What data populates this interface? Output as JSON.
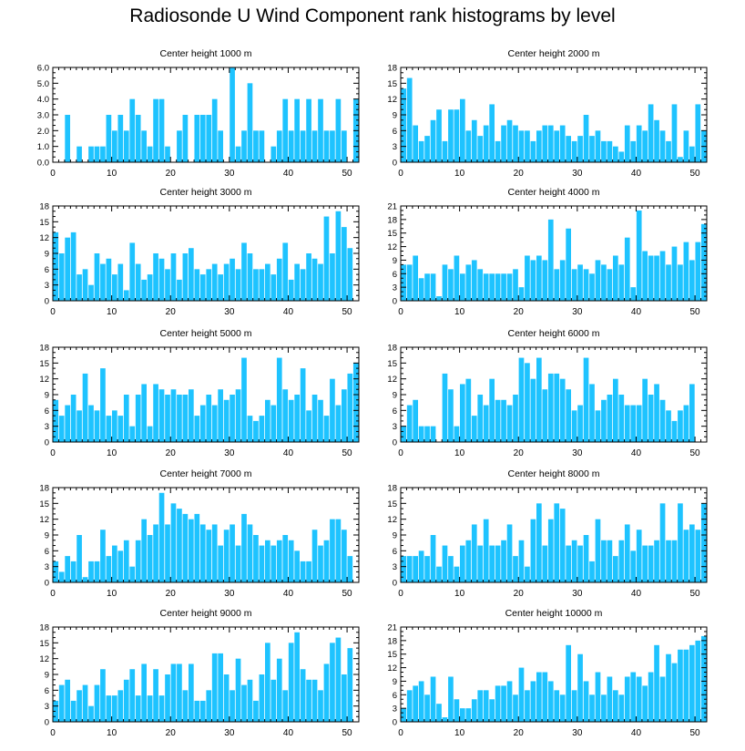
{
  "title": "Radiosonde U Wind Component rank histograms by level",
  "colors": {
    "bar": "#1ec3ff",
    "axis": "#000000",
    "background": "#ffffff"
  },
  "chart_data": [
    {
      "type": "bar",
      "title": "Center height 1000 m",
      "xlim": [
        0,
        52
      ],
      "ylim": [
        0,
        6
      ],
      "xticks": [
        0,
        10,
        20,
        30,
        40,
        50
      ],
      "yticks": [
        0,
        1,
        2,
        3,
        4,
        5,
        6
      ],
      "ytick_labels": [
        "0.0",
        "1.0",
        "2.0",
        "3.0",
        "4.0",
        "5.0",
        "6.0"
      ],
      "values": [
        0,
        0,
        3,
        0,
        1,
        0,
        1,
        1,
        1,
        3,
        2,
        3,
        2,
        4,
        3,
        2,
        1,
        4,
        4,
        1,
        0,
        2,
        3,
        0,
        3,
        3,
        3,
        4,
        2,
        0,
        6,
        1,
        2,
        5,
        2,
        2,
        0,
        1,
        2,
        4,
        2,
        4,
        2,
        4,
        2,
        4,
        2,
        2,
        4,
        2,
        0,
        4
      ]
    },
    {
      "type": "bar",
      "title": "Center height 2000 m",
      "xlim": [
        0,
        52
      ],
      "ylim": [
        0,
        18
      ],
      "xticks": [
        0,
        10,
        20,
        30,
        40,
        50
      ],
      "yticks": [
        0,
        3,
        6,
        9,
        12,
        15,
        18
      ],
      "ytick_labels": [
        "0",
        "3",
        "6",
        "9",
        "12",
        "15",
        "18"
      ],
      "values": [
        14,
        16,
        7,
        4,
        5,
        8,
        10,
        4,
        10,
        10,
        12,
        6,
        8,
        5,
        7,
        11,
        4,
        7,
        8,
        7,
        6,
        6,
        4,
        6,
        7,
        7,
        6,
        7,
        5,
        4,
        5,
        9,
        5,
        6,
        4,
        4,
        3,
        2,
        7,
        4,
        7,
        6,
        11,
        8,
        6,
        4,
        11,
        1,
        6,
        3,
        11,
        6
      ]
    },
    {
      "type": "bar",
      "title": "Center height 3000 m",
      "xlim": [
        0,
        52
      ],
      "ylim": [
        0,
        18
      ],
      "xticks": [
        0,
        10,
        20,
        30,
        40,
        50
      ],
      "yticks": [
        0,
        3,
        6,
        9,
        12,
        15,
        18
      ],
      "ytick_labels": [
        "0",
        "3",
        "6",
        "9",
        "12",
        "15",
        "18"
      ],
      "values": [
        13,
        9,
        12,
        13,
        5,
        6,
        3,
        9,
        7,
        8,
        5,
        7,
        2,
        11,
        7,
        4,
        5,
        9,
        8,
        6,
        9,
        4,
        9,
        10,
        6,
        5,
        6,
        7,
        5,
        7,
        8,
        6,
        11,
        9,
        6,
        6,
        7,
        5,
        8,
        11,
        4,
        7,
        6,
        9,
        8,
        7,
        16,
        9,
        17,
        14,
        10,
        0
      ]
    },
    {
      "type": "bar",
      "title": "Center height 4000 m",
      "xlim": [
        0,
        52
      ],
      "ylim": [
        0,
        21
      ],
      "xticks": [
        0,
        10,
        20,
        30,
        40,
        50
      ],
      "yticks": [
        0,
        3,
        6,
        9,
        12,
        15,
        18,
        21
      ],
      "ytick_labels": [
        "0",
        "3",
        "6",
        "9",
        "12",
        "15",
        "18",
        "21"
      ],
      "values": [
        8,
        8,
        10,
        5,
        6,
        6,
        1,
        8,
        7,
        10,
        6,
        8,
        9,
        7,
        6,
        6,
        6,
        6,
        6,
        7,
        3,
        10,
        9,
        10,
        9,
        18,
        7,
        9,
        16,
        7,
        8,
        7,
        6,
        9,
        8,
        7,
        10,
        8,
        14,
        3,
        20,
        11,
        10,
        10,
        11,
        8,
        12,
        8,
        13,
        9,
        13,
        17
      ]
    },
    {
      "type": "bar",
      "title": "Center height 5000 m",
      "xlim": [
        0,
        52
      ],
      "ylim": [
        0,
        18
      ],
      "xticks": [
        0,
        10,
        20,
        30,
        40,
        50
      ],
      "yticks": [
        0,
        3,
        6,
        9,
        12,
        15,
        18
      ],
      "ytick_labels": [
        "0",
        "3",
        "6",
        "9",
        "12",
        "15",
        "18"
      ],
      "values": [
        8,
        5,
        7,
        9,
        6,
        13,
        7,
        6,
        14,
        5,
        6,
        5,
        9,
        3,
        9,
        11,
        3,
        11,
        10,
        9,
        10,
        9,
        9,
        10,
        5,
        7,
        9,
        7,
        10,
        8,
        9,
        10,
        16,
        5,
        4,
        5,
        8,
        7,
        16,
        10,
        8,
        9,
        14,
        6,
        9,
        8,
        5,
        12,
        7,
        10,
        13,
        15
      ]
    },
    {
      "type": "bar",
      "title": "Center height 6000 m",
      "xlim": [
        0,
        52
      ],
      "ylim": [
        0,
        18
      ],
      "xticks": [
        0,
        10,
        20,
        30,
        40,
        50
      ],
      "yticks": [
        0,
        3,
        6,
        9,
        12,
        15,
        18
      ],
      "ytick_labels": [
        "0",
        "3",
        "6",
        "9",
        "12",
        "15",
        "18"
      ],
      "values": [
        3,
        7,
        8,
        3,
        3,
        3,
        0,
        13,
        10,
        3,
        11,
        12,
        5,
        9,
        7,
        12,
        8,
        8,
        7,
        9,
        16,
        15,
        12,
        16,
        10,
        13,
        13,
        12,
        10,
        6,
        7,
        16,
        11,
        6,
        8,
        9,
        12,
        9,
        7,
        7,
        7,
        12,
        9,
        11,
        8,
        6,
        4,
        6,
        7,
        11,
        0,
        0
      ]
    },
    {
      "type": "bar",
      "title": "Center height 7000 m",
      "xlim": [
        0,
        52
      ],
      "ylim": [
        0,
        18
      ],
      "xticks": [
        0,
        10,
        20,
        30,
        40,
        50
      ],
      "yticks": [
        0,
        3,
        6,
        9,
        12,
        15,
        18
      ],
      "ytick_labels": [
        "0",
        "3",
        "6",
        "9",
        "12",
        "15",
        "18"
      ],
      "values": [
        4,
        2,
        5,
        4,
        9,
        1,
        4,
        4,
        10,
        5,
        7,
        6,
        8,
        3,
        8,
        12,
        9,
        11,
        17,
        11,
        15,
        14,
        13,
        12,
        13,
        11,
        10,
        11,
        7,
        10,
        11,
        7,
        13,
        11,
        9,
        7,
        8,
        7,
        8,
        9,
        8,
        6,
        4,
        4,
        10,
        7,
        8,
        12,
        12,
        10,
        5,
        0
      ]
    },
    {
      "type": "bar",
      "title": "Center height 8000 m",
      "xlim": [
        0,
        52
      ],
      "ylim": [
        0,
        18
      ],
      "xticks": [
        0,
        10,
        20,
        30,
        40,
        50
      ],
      "yticks": [
        0,
        3,
        6,
        9,
        12,
        15,
        18
      ],
      "ytick_labels": [
        "0",
        "3",
        "6",
        "9",
        "12",
        "15",
        "18"
      ],
      "values": [
        5,
        5,
        5,
        6,
        5,
        9,
        3,
        7,
        5,
        3,
        7,
        8,
        11,
        7,
        12,
        7,
        7,
        8,
        11,
        5,
        8,
        3,
        12,
        15,
        7,
        12,
        15,
        14,
        7,
        8,
        7,
        9,
        4,
        12,
        8,
        8,
        5,
        8,
        11,
        6,
        10,
        7,
        7,
        8,
        15,
        8,
        8,
        15,
        10,
        11,
        10,
        15
      ]
    },
    {
      "type": "bar",
      "title": "Center height 9000 m",
      "xlim": [
        0,
        52
      ],
      "ylim": [
        0,
        18
      ],
      "xticks": [
        0,
        10,
        20,
        30,
        40,
        50
      ],
      "yticks": [
        0,
        3,
        6,
        9,
        12,
        15,
        18
      ],
      "ytick_labels": [
        "0",
        "3",
        "6",
        "9",
        "12",
        "15",
        "18"
      ],
      "values": [
        4,
        7,
        8,
        4,
        6,
        7,
        3,
        7,
        10,
        5,
        5,
        6,
        8,
        10,
        5,
        11,
        5,
        10,
        5,
        9,
        11,
        11,
        6,
        11,
        4,
        4,
        6,
        13,
        13,
        9,
        6,
        12,
        7,
        8,
        4,
        9,
        15,
        8,
        12,
        6,
        15,
        17,
        10,
        8,
        8,
        6,
        11,
        15,
        16,
        9,
        14,
        0
      ]
    },
    {
      "type": "bar",
      "title": "Center height 10000 m",
      "xlim": [
        0,
        52
      ],
      "ylim": [
        0,
        21
      ],
      "xticks": [
        0,
        10,
        20,
        30,
        40,
        50
      ],
      "yticks": [
        0,
        3,
        6,
        9,
        12,
        15,
        18,
        21
      ],
      "ytick_labels": [
        "0",
        "3",
        "6",
        "9",
        "12",
        "15",
        "18",
        "21"
      ],
      "values": [
        3,
        7,
        8,
        9,
        6,
        10,
        4,
        1,
        10,
        5,
        3,
        3,
        5,
        7,
        7,
        5,
        8,
        8,
        9,
        6,
        12,
        7,
        9,
        11,
        11,
        9,
        7,
        6,
        17,
        7,
        15,
        9,
        6,
        11,
        6,
        10,
        7,
        6,
        10,
        11,
        10,
        8,
        11,
        17,
        10,
        15,
        13,
        16,
        16,
        17,
        18,
        19
      ]
    }
  ]
}
